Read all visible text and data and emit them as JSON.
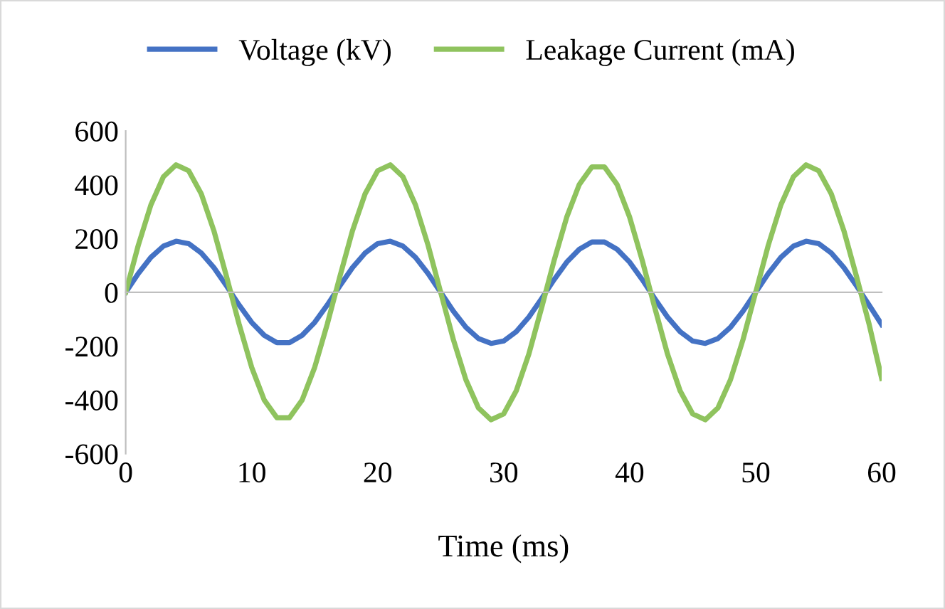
{
  "chart_data": {
    "type": "line",
    "xlabel": "Time (ms)",
    "xlim": [
      0,
      60
    ],
    "xticks": [
      0,
      10,
      20,
      30,
      40,
      50,
      60
    ],
    "ylim": [
      -600,
      600
    ],
    "yticks": [
      -600,
      -400,
      -200,
      0,
      200,
      400,
      600
    ],
    "legend": "top",
    "marker": "none",
    "line_style": "solid",
    "x": [
      0,
      1,
      2,
      3,
      4,
      5,
      6,
      7,
      8,
      9,
      10,
      11,
      12,
      13,
      14,
      15,
      16,
      17,
      18,
      19,
      20,
      21,
      22,
      23,
      24,
      25,
      26,
      27,
      28,
      29,
      30,
      31,
      32,
      33,
      34,
      35,
      36,
      37,
      38,
      39,
      40,
      41,
      42,
      43,
      44,
      45,
      46,
      47,
      48,
      49,
      50,
      51,
      52,
      53,
      54,
      55,
      56,
      57,
      58,
      59,
      60
    ],
    "series": [
      {
        "name": "Voltage (kV)",
        "color": "#4472c4",
        "values": [
          0,
          70,
          130,
          172,
          190,
          181,
          146,
          92,
          24,
          -47,
          -112,
          -160,
          -187,
          -187,
          -160,
          -112,
          -47,
          24,
          92,
          146,
          181,
          190,
          172,
          130,
          70,
          0,
          -70,
          -130,
          -172,
          -190,
          -181,
          -146,
          -92,
          -24,
          47,
          112,
          160,
          187,
          187,
          160,
          112,
          47,
          -24,
          -92,
          -146,
          -181,
          -190,
          -172,
          -130,
          -70,
          0,
          70,
          130,
          172,
          190,
          181,
          146,
          92,
          24,
          -47,
          -120
        ]
      },
      {
        "name": "Leakage Current (mA)",
        "color": "#8fc35e",
        "values": [
          0,
          175,
          325,
          430,
          474,
          452,
          366,
          229,
          59,
          -118,
          -279,
          -401,
          -466,
          -466,
          -401,
          -279,
          -118,
          59,
          229,
          366,
          452,
          474,
          430,
          325,
          175,
          0,
          -175,
          -325,
          -430,
          -474,
          -452,
          -366,
          -229,
          -59,
          118,
          279,
          401,
          466,
          466,
          401,
          279,
          118,
          -59,
          -229,
          -366,
          -452,
          -474,
          -430,
          -325,
          -175,
          0,
          175,
          325,
          430,
          474,
          452,
          366,
          229,
          59,
          -118,
          -320
        ]
      }
    ]
  }
}
